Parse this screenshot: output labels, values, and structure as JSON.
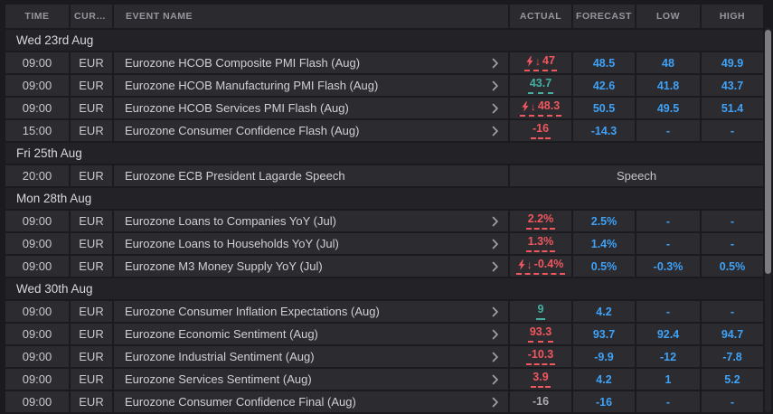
{
  "colors": {
    "accent_blue": "#3FA2F7",
    "negative_red": "#F1575E",
    "positive_teal": "#43B0A2",
    "neutral_value": "#ABABB0",
    "scrollbar_thumb": "#7C7C82"
  },
  "icons": {
    "row_expand": "chevron-right-icon",
    "actual_surprise": "bolt-icon",
    "actual_direction": "down-arrow-icon"
  },
  "table": {
    "columns": {
      "time": "TIME",
      "currency": "CURRE…",
      "event": "EVENT NAME",
      "actual": "ACTUAL",
      "forecast": "FORECAST",
      "low": "LOW",
      "high": "HIGH"
    },
    "sections": [
      {
        "date": "Wed 23rd Aug",
        "rows": [
          {
            "time": "09:00",
            "currency": "EUR",
            "event": "Eurozone HCOB Composite PMI Flash (Aug)",
            "chevron": true,
            "actual": {
              "value": "47",
              "state": "negative",
              "bolt": true,
              "arrow": true,
              "underline": true
            },
            "forecast": "48.5",
            "low": "48",
            "high": "49.9"
          },
          {
            "time": "09:00",
            "currency": "EUR",
            "event": "Eurozone HCOB Manufacturing PMI Flash (Aug)",
            "chevron": true,
            "actual": {
              "value": "43.7",
              "state": "positive",
              "bolt": false,
              "arrow": false,
              "underline": true
            },
            "forecast": "42.6",
            "low": "41.8",
            "high": "43.7"
          },
          {
            "time": "09:00",
            "currency": "EUR",
            "event": "Eurozone HCOB Services PMI Flash (Aug)",
            "chevron": true,
            "actual": {
              "value": "48.3",
              "state": "negative",
              "bolt": true,
              "arrow": true,
              "underline": true
            },
            "forecast": "50.5",
            "low": "49.5",
            "high": "51.4"
          },
          {
            "time": "15:00",
            "currency": "EUR",
            "event": "Eurozone Consumer Confidence Flash (Aug)",
            "chevron": true,
            "actual": {
              "value": "-16",
              "state": "negative",
              "bolt": false,
              "arrow": false,
              "underline": true
            },
            "forecast": "-14.3",
            "low": "-",
            "high": "-"
          }
        ]
      },
      {
        "date": "Fri 25th Aug",
        "rows": [
          {
            "time": "20:00",
            "currency": "EUR",
            "event": "Eurozone ECB President Lagarde Speech",
            "chevron": false,
            "span": "Speech"
          }
        ]
      },
      {
        "date": "Mon 28th Aug",
        "rows": [
          {
            "time": "09:00",
            "currency": "EUR",
            "event": "Eurozone Loans to Companies YoY (Jul)",
            "chevron": true,
            "actual": {
              "value": "2.2%",
              "state": "negative",
              "bolt": false,
              "arrow": false,
              "underline": true
            },
            "forecast": "2.5%",
            "low": "-",
            "high": "-"
          },
          {
            "time": "09:00",
            "currency": "EUR",
            "event": "Eurozone Loans to Households YoY (Jul)",
            "chevron": true,
            "actual": {
              "value": "1.3%",
              "state": "negative",
              "bolt": false,
              "arrow": false,
              "underline": true
            },
            "forecast": "1.4%",
            "low": "-",
            "high": "-"
          },
          {
            "time": "09:00",
            "currency": "EUR",
            "event": "Eurozone M3 Money Supply YoY (Jul)",
            "chevron": true,
            "actual": {
              "value": "-0.4%",
              "state": "negative",
              "bolt": true,
              "arrow": true,
              "underline": true
            },
            "forecast": "0.5%",
            "low": "-0.3%",
            "high": "0.5%"
          }
        ]
      },
      {
        "date": "Wed 30th Aug",
        "rows": [
          {
            "time": "09:00",
            "currency": "EUR",
            "event": "Eurozone Consumer Inflation Expectations (Aug)",
            "chevron": true,
            "actual": {
              "value": "9",
              "state": "positive",
              "bolt": false,
              "arrow": false,
              "underline": true
            },
            "forecast": "4.2",
            "low": "-",
            "high": "-"
          },
          {
            "time": "09:00",
            "currency": "EUR",
            "event": "Eurozone Economic Sentiment (Aug)",
            "chevron": true,
            "actual": {
              "value": "93.3",
              "state": "negative",
              "bolt": false,
              "arrow": false,
              "underline": true
            },
            "forecast": "93.7",
            "low": "92.4",
            "high": "94.7"
          },
          {
            "time": "09:00",
            "currency": "EUR",
            "event": "Eurozone Industrial Sentiment (Aug)",
            "chevron": true,
            "actual": {
              "value": "-10.3",
              "state": "negative",
              "bolt": false,
              "arrow": false,
              "underline": true
            },
            "forecast": "-9.9",
            "low": "-12",
            "high": "-7.8"
          },
          {
            "time": "09:00",
            "currency": "EUR",
            "event": "Eurozone Services Sentiment (Aug)",
            "chevron": true,
            "actual": {
              "value": "3.9",
              "state": "negative",
              "bolt": false,
              "arrow": false,
              "underline": true
            },
            "forecast": "4.2",
            "low": "1",
            "high": "5.2"
          },
          {
            "time": "09:00",
            "currency": "EUR",
            "event": "Eurozone Consumer Confidence Final (Aug)",
            "chevron": true,
            "actual": {
              "value": "-16",
              "state": "neutral",
              "bolt": false,
              "arrow": false,
              "underline": false
            },
            "forecast": "-16",
            "low": "-",
            "high": "-"
          }
        ]
      }
    ]
  }
}
